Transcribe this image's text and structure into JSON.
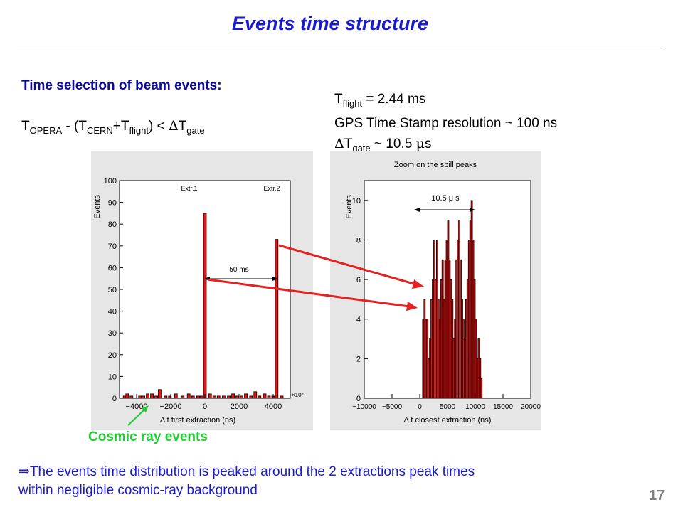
{
  "slide": {
    "title": "Events time structure",
    "page_number": "17",
    "selection_heading": "Time selection of beam events:",
    "formula": {
      "t1": "T",
      "s1": "OPERA",
      "op1": " - (T",
      "s2": "CERN",
      "op2": "+T",
      "s3": "flight",
      "op3": ") < ",
      "delta": "Δ",
      "t4": "T",
      "s4": "gate"
    },
    "params": {
      "line1_T": "T",
      "line1_sub": "flight",
      "line1_rest": " = 2.44 ms",
      "line2": "GPS Time Stamp resolution ~ 100 ns",
      "line3_delta": "Δ",
      "line3_T": "T",
      "line3_sub": "gate",
      "line3_rest": " ~ 10.5 ",
      "line3_mu": "μ",
      "line3_unit": "s"
    },
    "cosmic_label": "Cosmic ray events",
    "conclusion_arrow": "⇒",
    "conclusion_line1": "The events time distribution is peaked around the 2 extractions peak times",
    "conclusion_line2": "within negligible cosmic-ray background",
    "colors": {
      "title": "#1a1ad0",
      "heading": "#0a0a9c",
      "cosmic": "#22cc33",
      "arrow": "#e52222",
      "hist_fill": "#ee1111",
      "panel_bg": "#e6e6e6"
    }
  },
  "chart_data": [
    {
      "type": "bar",
      "ylabel": "Events",
      "xlabel": "Δ t first extraction (ns)",
      "x_multiplier_label": "×10⁴",
      "xlim": [
        -5000,
        5000
      ],
      "ylim": [
        0,
        100
      ],
      "x_ticks": [
        -4000,
        -2000,
        0,
        2000,
        4000
      ],
      "x_tick_labels": [
        "−4000",
        "−2000",
        "0",
        "2000",
        "4000"
      ],
      "y_ticks": [
        0,
        10,
        20,
        30,
        40,
        50,
        60,
        70,
        80,
        90,
        100
      ],
      "annotations": [
        "Extr.1",
        "Extr.2",
        "50 ms"
      ],
      "bins": [
        {
          "x": -4700,
          "y": 1
        },
        {
          "x": -4550,
          "y": 2
        },
        {
          "x": -4300,
          "y": 1
        },
        {
          "x": -3800,
          "y": 1
        },
        {
          "x": -3600,
          "y": 1
        },
        {
          "x": -3350,
          "y": 2
        },
        {
          "x": -3100,
          "y": 2
        },
        {
          "x": -2850,
          "y": 1
        },
        {
          "x": -2650,
          "y": 4
        },
        {
          "x": -2300,
          "y": 1
        },
        {
          "x": -2050,
          "y": 1
        },
        {
          "x": -1700,
          "y": 2
        },
        {
          "x": -1300,
          "y": 1
        },
        {
          "x": -950,
          "y": 2
        },
        {
          "x": -700,
          "y": 1
        },
        {
          "x": -400,
          "y": 1
        },
        {
          "x": -200,
          "y": 1
        },
        {
          "x": 0,
          "y": 85
        },
        {
          "x": 300,
          "y": 2
        },
        {
          "x": 550,
          "y": 1
        },
        {
          "x": 800,
          "y": 1
        },
        {
          "x": 1100,
          "y": 1
        },
        {
          "x": 1400,
          "y": 1
        },
        {
          "x": 1650,
          "y": 2
        },
        {
          "x": 1900,
          "y": 1
        },
        {
          "x": 2150,
          "y": 1
        },
        {
          "x": 2400,
          "y": 2
        },
        {
          "x": 2700,
          "y": 1
        },
        {
          "x": 2950,
          "y": 3
        },
        {
          "x": 3200,
          "y": 1
        },
        {
          "x": 3500,
          "y": 2
        },
        {
          "x": 3750,
          "y": 1
        },
        {
          "x": 4000,
          "y": 1
        },
        {
          "x": 4200,
          "y": 73
        },
        {
          "x": 4500,
          "y": 1
        }
      ]
    },
    {
      "type": "bar",
      "title": "Zoom on the spill peaks",
      "ylabel": "Events",
      "xlabel": "Δ t closest extraction (ns)",
      "xlim": [
        -10000,
        20000
      ],
      "ylim": [
        0,
        11
      ],
      "x_ticks": [
        -10000,
        -5000,
        0,
        5000,
        10000,
        15000,
        20000
      ],
      "x_tick_labels": [
        "−10000",
        "−5000",
        "0",
        "5000",
        "10000",
        "15000",
        "20000"
      ],
      "y_ticks": [
        0,
        2,
        4,
        6,
        8,
        10
      ],
      "annotations": [
        "10.5  μ s"
      ],
      "bin_width": 250,
      "bin_start": 500,
      "values": [
        4,
        5,
        4,
        4,
        2,
        3,
        5,
        6,
        8,
        6,
        8,
        5,
        4,
        6,
        7,
        5,
        7,
        8,
        9,
        7,
        6,
        5,
        3,
        4,
        7,
        8,
        9,
        7,
        5,
        4,
        3,
        5,
        6,
        8,
        9,
        10,
        8,
        6,
        4,
        2,
        3,
        2,
        1
      ]
    }
  ]
}
